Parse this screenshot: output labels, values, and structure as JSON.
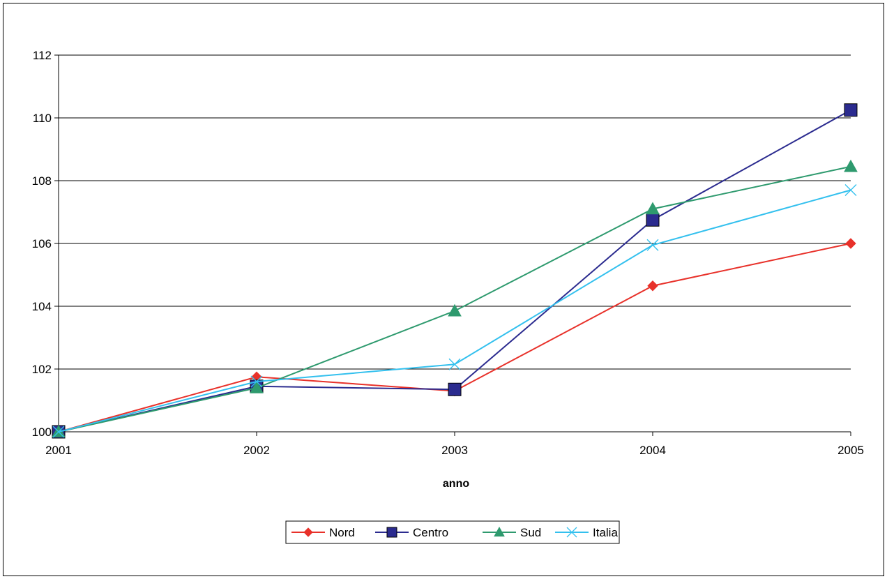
{
  "chart_data": {
    "type": "line",
    "title": "",
    "xlabel": "anno",
    "ylabel": "",
    "categories": [
      "2001",
      "2002",
      "2003",
      "2004",
      "2005"
    ],
    "ylim": [
      100,
      112
    ],
    "yticks": [
      "100",
      "102",
      "104",
      "106",
      "108",
      "110",
      "112"
    ],
    "grid": true,
    "legend_position": "bottom",
    "series": [
      {
        "name": "Nord",
        "color": "#e8312a",
        "marker": "diamond",
        "values": [
          100,
          101.75,
          101.3,
          104.65,
          106.0
        ]
      },
      {
        "name": "Centro",
        "color": "#2b2b8f",
        "marker": "square",
        "values": [
          100,
          101.45,
          101.35,
          106.75,
          110.25
        ]
      },
      {
        "name": "Sud",
        "color": "#2e9a6e",
        "marker": "triangle",
        "values": [
          100,
          101.4,
          103.85,
          107.1,
          108.45
        ]
      },
      {
        "name": "Italia",
        "color": "#33c0ee",
        "marker": "cross",
        "values": [
          100,
          101.6,
          102.15,
          105.95,
          107.7
        ]
      }
    ]
  }
}
